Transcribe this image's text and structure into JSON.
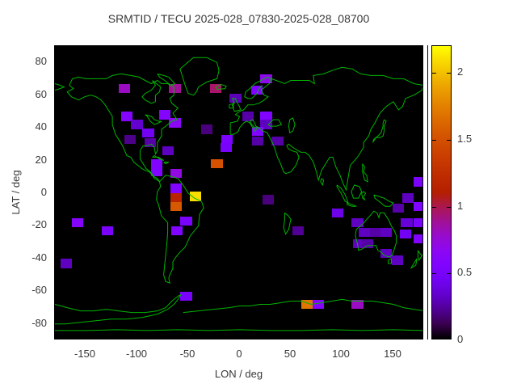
{
  "window": {
    "background": "#ffffff"
  },
  "title": "SRMTID / TECU 2025-028_07830-2025-028_08700",
  "chart_data": {
    "type": "heatmap",
    "title": "SRMTID / TECU 2025-028_07830-2025-028_08700",
    "xlabel": "LON / deg",
    "ylabel": "LAT / deg",
    "xlim": [
      -180,
      180
    ],
    "ylim": [
      -90,
      90
    ],
    "x_ticks": [
      -150,
      -100,
      -50,
      0,
      50,
      100,
      150
    ],
    "y_ticks": [
      80,
      60,
      40,
      20,
      0,
      -20,
      -40,
      -60,
      -80
    ],
    "grid": false,
    "plot_background": "#000000",
    "coastline_color": "#00b400",
    "text_color": "#383838",
    "colorbar": {
      "min": 0,
      "max": 2.2,
      "tick_values": [
        0,
        0.5,
        1,
        1.5,
        2
      ],
      "tick_labels": [
        "0",
        "0.5",
        "1",
        "1.5",
        "2"
      ],
      "palette": "gnuplot-rgbformulae-7-5-15 (black-violet-magenta-red-orange-yellow)"
    },
    "cell_size_deg": {
      "lon": 11.25,
      "lat": 5.625
    },
    "cells_format": [
      "lon_deg",
      "lat_deg",
      "tecu"
    ],
    "cells": [
      [
        -112,
        64,
        0.8
      ],
      [
        -63,
        64,
        0.88
      ],
      [
        -23,
        64,
        0.95
      ],
      [
        -4,
        58,
        0.28
      ],
      [
        26,
        70,
        0.68
      ],
      [
        17,
        63,
        0.55
      ],
      [
        -110,
        47,
        0.6
      ],
      [
        -73,
        48,
        0.58
      ],
      [
        -63,
        43,
        0.65
      ],
      [
        -100,
        42,
        0.33
      ],
      [
        -89,
        37,
        0.45
      ],
      [
        -107,
        33,
        0.2
      ],
      [
        -87,
        31,
        0.25
      ],
      [
        -32,
        39,
        0.18
      ],
      [
        -12,
        33,
        0.52
      ],
      [
        -13,
        28,
        0.48
      ],
      [
        8,
        47,
        0.25
      ],
      [
        26,
        47,
        0.55
      ],
      [
        26,
        42,
        0.3
      ],
      [
        18,
        38,
        0.55
      ],
      [
        18,
        32,
        0.25
      ],
      [
        37,
        32,
        0.25
      ],
      [
        -70,
        26,
        0.3
      ],
      [
        -81,
        18,
        0.55
      ],
      [
        -81,
        13,
        0.55
      ],
      [
        -62,
        12,
        0.72
      ],
      [
        -22,
        18,
        1.5
      ],
      [
        -62,
        3,
        0.55
      ],
      [
        -62,
        -3,
        1.15
      ],
      [
        -62,
        -8,
        1.55
      ],
      [
        -43,
        -2,
        2.1
      ],
      [
        -52,
        -17,
        0.5
      ],
      [
        -61,
        -23,
        0.55
      ],
      [
        -158,
        -18,
        0.6
      ],
      [
        -129,
        -23,
        0.5
      ],
      [
        -169,
        -43,
        0.3
      ],
      [
        28,
        -4,
        0.18
      ],
      [
        57,
        -23,
        0.22
      ],
      [
        96,
        -12,
        0.4
      ],
      [
        175,
        7,
        0.5
      ],
      [
        164,
        -3,
        0.3
      ],
      [
        155,
        -9,
        0.25
      ],
      [
        175,
        -8,
        0.55
      ],
      [
        115,
        -18,
        0.3
      ],
      [
        163,
        -18,
        0.35
      ],
      [
        175,
        -18,
        0.5
      ],
      [
        122,
        -24,
        0.3
      ],
      [
        133,
        -24,
        0.25
      ],
      [
        143,
        -24,
        0.3
      ],
      [
        162,
        -25,
        0.45
      ],
      [
        116,
        -31,
        0.3
      ],
      [
        125,
        -31,
        0.25
      ],
      [
        175,
        -28,
        0.55
      ],
      [
        143,
        -37,
        0.3
      ],
      [
        154,
        -41,
        0.3
      ],
      [
        -52,
        -63,
        0.5
      ],
      [
        66,
        -68,
        1.7
      ],
      [
        77,
        -68,
        0.6
      ],
      [
        115,
        -68,
        0.8
      ]
    ]
  }
}
